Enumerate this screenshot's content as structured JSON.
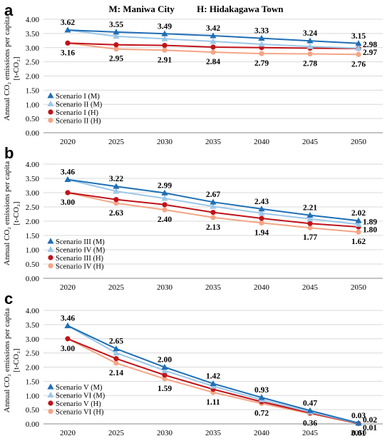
{
  "header": {
    "left": "M: Maniwa City",
    "right": "H: Hidakagawa Town"
  },
  "colors": {
    "M1": "#1f6fb5",
    "M2": "#9cc7e8",
    "H1": "#c0131a",
    "H2": "#f4a585",
    "grid": "#d9d9d9",
    "axis": "#888888"
  },
  "chart_data": [
    {
      "panel": "a",
      "type": "line",
      "ylabel_line1": "Annual CO₂ emissions per capita",
      "ylabel_line2": "[t-CO₂]",
      "x": [
        2020,
        2025,
        2030,
        2035,
        2040,
        2045,
        2050
      ],
      "ylim": [
        0,
        4
      ],
      "yticks": [
        "0.00",
        "0.50",
        "1.00",
        "1.50",
        "2.00",
        "2.50",
        "3.00",
        "3.50",
        "4.00"
      ],
      "grid": true,
      "legend_position": "bottom-left",
      "series": [
        {
          "name": "Scenario I (M)",
          "marker": "triangle",
          "color_key": "M1",
          "values": [
            3.62,
            3.55,
            3.49,
            3.42,
            3.33,
            3.24,
            3.15
          ]
        },
        {
          "name": "Scenario II (M)",
          "marker": "triangle",
          "color_key": "M2",
          "values": [
            3.62,
            3.4,
            3.31,
            3.22,
            3.12,
            3.04,
            2.98
          ]
        },
        {
          "name": "Scenario I (H)",
          "marker": "circle",
          "color_key": "H1",
          "values": [
            3.16,
            3.1,
            3.08,
            3.02,
            3.0,
            2.98,
            2.97
          ]
        },
        {
          "name": "Scenario II (H)",
          "marker": "circle",
          "color_key": "H2",
          "values": [
            3.16,
            2.95,
            2.91,
            2.84,
            2.79,
            2.78,
            2.76
          ]
        }
      ],
      "data_labels_top": [
        "3.62",
        "3.55",
        "3.49",
        "3.42",
        "3.33",
        "3.24",
        "3.15"
      ],
      "data_labels_bottom": [
        "3.16",
        "2.95",
        "2.91",
        "2.84",
        "2.79",
        "2.78",
        "2.76"
      ],
      "end_labels": [
        "2.98",
        "2.97"
      ]
    },
    {
      "panel": "b",
      "type": "line",
      "ylabel_line1": "Annual CO₂ emissions per capita",
      "ylabel_line2": "[t-CO₂]",
      "x": [
        2020,
        2025,
        2030,
        2035,
        2040,
        2045,
        2050
      ],
      "ylim": [
        0,
        4
      ],
      "yticks": [
        "0.00",
        "0.50",
        "1.00",
        "1.50",
        "2.00",
        "2.50",
        "3.00",
        "3.50",
        "4.00"
      ],
      "grid": true,
      "legend_position": "bottom-left",
      "series": [
        {
          "name": "Scenario III (M)",
          "marker": "triangle",
          "color_key": "M1",
          "values": [
            3.46,
            3.22,
            2.99,
            2.67,
            2.43,
            2.21,
            2.02
          ]
        },
        {
          "name": "Scenario IV (M)",
          "marker": "triangle",
          "color_key": "M2",
          "values": [
            3.46,
            3.05,
            2.8,
            2.52,
            2.28,
            2.08,
            1.89
          ]
        },
        {
          "name": "Scenario III (H)",
          "marker": "circle",
          "color_key": "H1",
          "values": [
            3.0,
            2.76,
            2.58,
            2.31,
            2.1,
            1.92,
            1.8
          ]
        },
        {
          "name": "Scenario IV (H)",
          "marker": "circle",
          "color_key": "H2",
          "values": [
            3.0,
            2.63,
            2.4,
            2.13,
            1.94,
            1.77,
            1.62
          ]
        }
      ],
      "data_labels_top": [
        "3.46",
        "3.22",
        "2.99",
        "2.67",
        "2.43",
        "2.21",
        "2.02"
      ],
      "data_labels_bottom": [
        "3.00",
        "2.63",
        "2.40",
        "2.13",
        "1.94",
        "1.77",
        "1.62"
      ],
      "end_labels": [
        "1.89",
        "1.80"
      ]
    },
    {
      "panel": "c",
      "type": "line",
      "ylabel_line1": "Annual CO₂ emissions per capita",
      "ylabel_line2": "[t-CO₂]",
      "x": [
        2020,
        2025,
        2030,
        2035,
        2040,
        2045,
        2050
      ],
      "ylim": [
        0,
        4
      ],
      "yticks": [
        "0.00",
        "0.50",
        "1.00",
        "1.50",
        "2.00",
        "2.50",
        "3.00",
        "3.50",
        "4.00"
      ],
      "grid": true,
      "legend_position": "bottom-left",
      "series": [
        {
          "name": "Scenario V (M)",
          "marker": "triangle",
          "color_key": "M1",
          "values": [
            3.46,
            2.65,
            2.0,
            1.42,
            0.93,
            0.47,
            0.03
          ]
        },
        {
          "name": "Scenario VI (M)",
          "marker": "triangle",
          "color_key": "M2",
          "values": [
            3.46,
            2.5,
            1.88,
            1.33,
            0.85,
            0.42,
            0.02
          ]
        },
        {
          "name": "Scenario V (H)",
          "marker": "circle",
          "color_key": "H1",
          "values": [
            3.0,
            2.3,
            1.72,
            1.22,
            0.78,
            0.39,
            0.01
          ]
        },
        {
          "name": "Scenario VI (H)",
          "marker": "circle",
          "color_key": "H2",
          "values": [
            3.0,
            2.14,
            1.59,
            1.11,
            0.72,
            0.36,
            0.01
          ]
        }
      ],
      "data_labels_top": [
        "3.46",
        "2.65",
        "2.00",
        "1.42",
        "0.93",
        "0.47",
        "0.03"
      ],
      "data_labels_bottom": [
        "3.00",
        "2.14",
        "1.59",
        "1.11",
        "0.72",
        "0.36",
        "0.01"
      ],
      "end_labels": [
        "0.02",
        "0.01"
      ]
    }
  ]
}
